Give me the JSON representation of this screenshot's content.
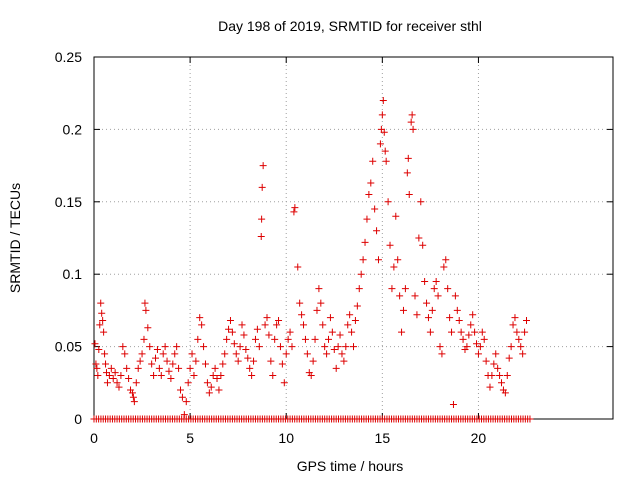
{
  "chart_data": {
    "type": "scatter",
    "title": "Day 198 of 2019, SRMTID for receiver sthl",
    "xlabel": "GPS time / hours",
    "ylabel": "SRMTID / TECUs",
    "xlim": [
      0,
      27
    ],
    "ylim": [
      0,
      0.25
    ],
    "x_ticks": [
      0,
      5,
      10,
      15,
      20
    ],
    "x_tick_labels": [
      "0",
      "5",
      "10",
      "15",
      "20"
    ],
    "y_ticks": [
      0,
      0.05,
      0.1,
      0.15,
      0.2,
      0.25
    ],
    "y_tick_labels": [
      "0",
      "0.05",
      "0.1",
      "0.15",
      "0.2",
      "0.25"
    ],
    "grid": true,
    "marker": "plus",
    "series": [
      {
        "name": "SRMTID",
        "color": "#dd0000",
        "points": [
          [
            0.05,
            0.052
          ],
          [
            0.1,
            0.038
          ],
          [
            0.15,
            0.035
          ],
          [
            0.2,
            0.03
          ],
          [
            0.25,
            0.048
          ],
          [
            0.3,
            0.065
          ],
          [
            0.35,
            0.08
          ],
          [
            0.4,
            0.073
          ],
          [
            0.45,
            0.068
          ],
          [
            0.5,
            0.06
          ],
          [
            0.55,
            0.045
          ],
          [
            0.6,
            0.038
          ],
          [
            0.65,
            0.032
          ],
          [
            0.7,
            0.025
          ],
          [
            0.8,
            0.03
          ],
          [
            0.9,
            0.035
          ],
          [
            1.0,
            0.028
          ],
          [
            1.1,
            0.032
          ],
          [
            1.2,
            0.025
          ],
          [
            1.3,
            0.022
          ],
          [
            1.4,
            0.03
          ],
          [
            1.5,
            0.05
          ],
          [
            1.6,
            0.045
          ],
          [
            1.7,
            0.035
          ],
          [
            1.8,
            0.028
          ],
          [
            1.9,
            0.02
          ],
          [
            2.0,
            0.018
          ],
          [
            2.05,
            0.015
          ],
          [
            2.1,
            0.012
          ],
          [
            2.2,
            0.025
          ],
          [
            2.3,
            0.035
          ],
          [
            2.4,
            0.04
          ],
          [
            2.5,
            0.045
          ],
          [
            2.6,
            0.055
          ],
          [
            2.65,
            0.08
          ],
          [
            2.7,
            0.075
          ],
          [
            2.8,
            0.063
          ],
          [
            2.9,
            0.05
          ],
          [
            3.0,
            0.038
          ],
          [
            3.1,
            0.03
          ],
          [
            3.2,
            0.042
          ],
          [
            3.3,
            0.048
          ],
          [
            3.4,
            0.035
          ],
          [
            3.5,
            0.03
          ],
          [
            3.6,
            0.045
          ],
          [
            3.7,
            0.05
          ],
          [
            3.8,
            0.04
          ],
          [
            3.9,
            0.033
          ],
          [
            4.0,
            0.028
          ],
          [
            4.1,
            0.038
          ],
          [
            4.2,
            0.045
          ],
          [
            4.3,
            0.05
          ],
          [
            4.4,
            0.035
          ],
          [
            4.5,
            0.02
          ],
          [
            4.6,
            0.015
          ],
          [
            4.7,
            0.003
          ],
          [
            4.8,
            0.012
          ],
          [
            4.9,
            0.025
          ],
          [
            5.0,
            0.035
          ],
          [
            5.1,
            0.045
          ],
          [
            5.2,
            0.03
          ],
          [
            5.3,
            0.04
          ],
          [
            5.4,
            0.055
          ],
          [
            5.5,
            0.07
          ],
          [
            5.6,
            0.065
          ],
          [
            5.7,
            0.05
          ],
          [
            5.8,
            0.038
          ],
          [
            5.9,
            0.025
          ],
          [
            6.0,
            0.018
          ],
          [
            6.1,
            0.022
          ],
          [
            6.2,
            0.03
          ],
          [
            6.3,
            0.035
          ],
          [
            6.4,
            0.028
          ],
          [
            6.5,
            0.02
          ],
          [
            6.6,
            0.03
          ],
          [
            6.7,
            0.038
          ],
          [
            6.8,
            0.045
          ],
          [
            6.9,
            0.055
          ],
          [
            7.0,
            0.062
          ],
          [
            7.1,
            0.068
          ],
          [
            7.2,
            0.06
          ],
          [
            7.3,
            0.052
          ],
          [
            7.4,
            0.045
          ],
          [
            7.5,
            0.04
          ],
          [
            7.6,
            0.05
          ],
          [
            7.7,
            0.065
          ],
          [
            7.8,
            0.058
          ],
          [
            7.9,
            0.048
          ],
          [
            8.0,
            0.042
          ],
          [
            8.1,
            0.035
          ],
          [
            8.2,
            0.03
          ],
          [
            8.3,
            0.04
          ],
          [
            8.4,
            0.055
          ],
          [
            8.5,
            0.062
          ],
          [
            8.6,
            0.05
          ],
          [
            8.7,
            0.126
          ],
          [
            8.72,
            0.138
          ],
          [
            8.75,
            0.16
          ],
          [
            8.8,
            0.175
          ],
          [
            8.9,
            0.065
          ],
          [
            9.0,
            0.07
          ],
          [
            9.1,
            0.058
          ],
          [
            9.2,
            0.04
          ],
          [
            9.3,
            0.03
          ],
          [
            9.4,
            0.055
          ],
          [
            9.5,
            0.065
          ],
          [
            9.6,
            0.068
          ],
          [
            9.7,
            0.05
          ],
          [
            9.8,
            0.038
          ],
          [
            9.9,
            0.025
          ],
          [
            10.0,
            0.045
          ],
          [
            10.1,
            0.055
          ],
          [
            10.2,
            0.06
          ],
          [
            10.3,
            0.05
          ],
          [
            10.4,
            0.143
          ],
          [
            10.45,
            0.146
          ],
          [
            10.6,
            0.105
          ],
          [
            10.7,
            0.08
          ],
          [
            10.8,
            0.072
          ],
          [
            10.9,
            0.065
          ],
          [
            11.0,
            0.055
          ],
          [
            11.1,
            0.045
          ],
          [
            11.2,
            0.032
          ],
          [
            11.3,
            0.03
          ],
          [
            11.4,
            0.04
          ],
          [
            11.5,
            0.055
          ],
          [
            11.6,
            0.075
          ],
          [
            11.7,
            0.09
          ],
          [
            11.8,
            0.08
          ],
          [
            11.9,
            0.065
          ],
          [
            12.0,
            0.05
          ],
          [
            12.1,
            0.045
          ],
          [
            12.2,
            0.055
          ],
          [
            12.3,
            0.07
          ],
          [
            12.4,
            0.06
          ],
          [
            12.5,
            0.048
          ],
          [
            12.6,
            0.035
          ],
          [
            12.7,
            0.05
          ],
          [
            12.8,
            0.058
          ],
          [
            12.9,
            0.045
          ],
          [
            13.0,
            0.04
          ],
          [
            13.1,
            0.05
          ],
          [
            13.2,
            0.065
          ],
          [
            13.3,
            0.072
          ],
          [
            13.4,
            0.06
          ],
          [
            13.5,
            0.05
          ],
          [
            13.6,
            0.068
          ],
          [
            13.7,
            0.078
          ],
          [
            13.8,
            0.09
          ],
          [
            13.9,
            0.1
          ],
          [
            14.0,
            0.11
          ],
          [
            14.1,
            0.122
          ],
          [
            14.2,
            0.138
          ],
          [
            14.3,
            0.155
          ],
          [
            14.4,
            0.163
          ],
          [
            14.5,
            0.178
          ],
          [
            14.6,
            0.145
          ],
          [
            14.7,
            0.13
          ],
          [
            14.8,
            0.11
          ],
          [
            14.9,
            0.19
          ],
          [
            14.95,
            0.2
          ],
          [
            15.0,
            0.21
          ],
          [
            15.05,
            0.22
          ],
          [
            15.1,
            0.198
          ],
          [
            15.15,
            0.185
          ],
          [
            15.2,
            0.178
          ],
          [
            15.3,
            0.15
          ],
          [
            15.4,
            0.12
          ],
          [
            15.5,
            0.09
          ],
          [
            15.6,
            0.105
          ],
          [
            15.7,
            0.14
          ],
          [
            15.8,
            0.11
          ],
          [
            15.9,
            0.085
          ],
          [
            16.0,
            0.06
          ],
          [
            16.1,
            0.075
          ],
          [
            16.2,
            0.09
          ],
          [
            16.3,
            0.17
          ],
          [
            16.35,
            0.18
          ],
          [
            16.4,
            0.155
          ],
          [
            16.5,
            0.205
          ],
          [
            16.55,
            0.21
          ],
          [
            16.6,
            0.2
          ],
          [
            16.7,
            0.085
          ],
          [
            16.8,
            0.072
          ],
          [
            16.9,
            0.125
          ],
          [
            17.0,
            0.15
          ],
          [
            17.1,
            0.12
          ],
          [
            17.2,
            0.095
          ],
          [
            17.3,
            0.08
          ],
          [
            17.4,
            0.07
          ],
          [
            17.5,
            0.06
          ],
          [
            17.6,
            0.075
          ],
          [
            17.7,
            0.09
          ],
          [
            17.8,
            0.095
          ],
          [
            17.9,
            0.085
          ],
          [
            18.0,
            0.05
          ],
          [
            18.1,
            0.045
          ],
          [
            18.2,
            0.105
          ],
          [
            18.3,
            0.11
          ],
          [
            18.4,
            0.09
          ],
          [
            18.5,
            0.07
          ],
          [
            18.6,
            0.06
          ],
          [
            18.7,
            0.01
          ],
          [
            18.8,
            0.085
          ],
          [
            18.9,
            0.075
          ],
          [
            19.0,
            0.068
          ],
          [
            19.1,
            0.06
          ],
          [
            19.2,
            0.055
          ],
          [
            19.3,
            0.048
          ],
          [
            19.4,
            0.05
          ],
          [
            19.5,
            0.058
          ],
          [
            19.6,
            0.065
          ],
          [
            19.7,
            0.072
          ],
          [
            19.8,
            0.06
          ],
          [
            19.9,
            0.052
          ],
          [
            20.0,
            0.045
          ],
          [
            20.1,
            0.05
          ],
          [
            20.2,
            0.06
          ],
          [
            20.3,
            0.055
          ],
          [
            20.4,
            0.04
          ],
          [
            20.5,
            0.03
          ],
          [
            20.6,
            0.022
          ],
          [
            20.7,
            0.03
          ],
          [
            20.8,
            0.038
          ],
          [
            20.9,
            0.045
          ],
          [
            21.0,
            0.035
          ],
          [
            21.1,
            0.03
          ],
          [
            21.2,
            0.025
          ],
          [
            21.3,
            0.02
          ],
          [
            21.4,
            0.018
          ],
          [
            21.5,
            0.03
          ],
          [
            21.6,
            0.042
          ],
          [
            21.7,
            0.05
          ],
          [
            21.8,
            0.065
          ],
          [
            21.9,
            0.07
          ],
          [
            22.0,
            0.06
          ],
          [
            22.1,
            0.055
          ],
          [
            22.2,
            0.05
          ],
          [
            22.3,
            0.045
          ],
          [
            22.4,
            0.06
          ],
          [
            22.5,
            0.068
          ]
        ],
        "zero_points_x_range": [
          0,
          22.7
        ],
        "zero_points_value": 0
      }
    ]
  }
}
